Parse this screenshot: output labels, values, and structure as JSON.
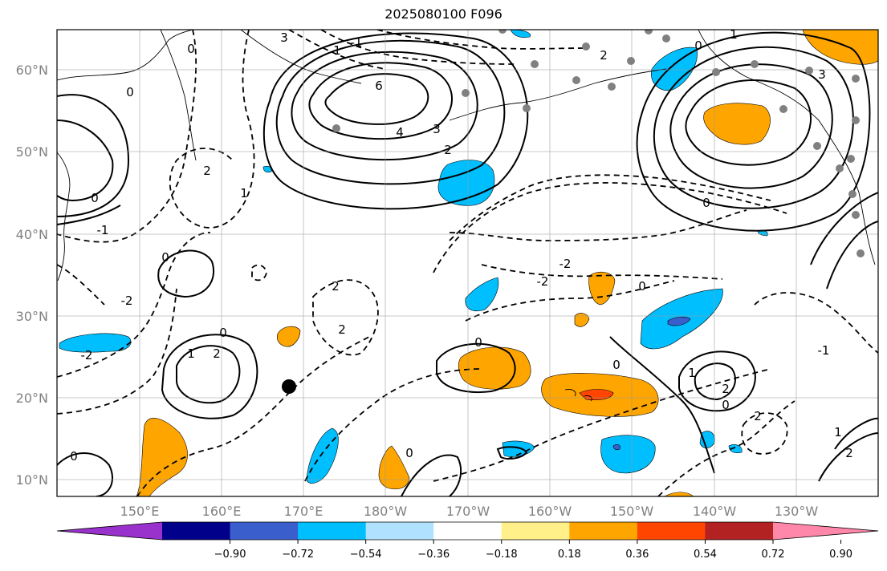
{
  "title": "2025080100 F096",
  "lat_labels": [
    "60°N",
    "50°N",
    "40°N",
    "30°N",
    "20°N",
    "10°N"
  ],
  "lon_labels": [
    "150°E",
    "160°E",
    "170°E",
    "180°W",
    "170°W",
    "160°W",
    "150°W",
    "140°W",
    "130°W"
  ],
  "colorbar": {
    "ticks": [
      "−0.90",
      "−0.72",
      "−0.54",
      "−0.36",
      "−0.18",
      "0.18",
      "0.36",
      "0.54",
      "0.72",
      "0.90"
    ],
    "colors": [
      "#9932cc",
      "#00008b",
      "#3a5fcd",
      "#00bfff",
      "#b0e2ff",
      "#ffffff",
      "#fff08a",
      "#ffa500",
      "#ff4500",
      "#b22222",
      "#ff88aa"
    ]
  },
  "contour_labels": [
    "3",
    "0",
    "1",
    "-1",
    "6",
    "4",
    "3",
    "2",
    "2",
    "0",
    "2",
    "1",
    "0",
    "-1",
    "-2",
    "0",
    "0",
    "0",
    "1",
    "2",
    "2",
    "0",
    "-2",
    "-2",
    "0",
    "-2",
    "2",
    "0",
    "-1",
    "1",
    "2",
    "0",
    "2",
    "3",
    "1",
    "0",
    "0",
    "1",
    "2",
    "0"
  ]
}
